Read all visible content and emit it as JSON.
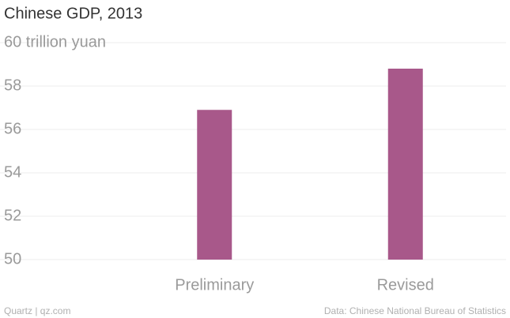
{
  "chart_data": {
    "type": "bar",
    "title": "Chinese GDP, 2013",
    "categories": [
      "Preliminary",
      "Revised"
    ],
    "values": [
      56.9,
      58.8
    ],
    "color": "#a8588a",
    "ylim": [
      50,
      60
    ],
    "yticks": [
      50,
      52,
      54,
      56,
      58,
      {
        "value": 60,
        "label": "60 trillion yuan"
      }
    ],
    "grid": true,
    "credit": "Quartz | qz.com",
    "source": "Data: Chinese National Bureau of Statistics"
  }
}
